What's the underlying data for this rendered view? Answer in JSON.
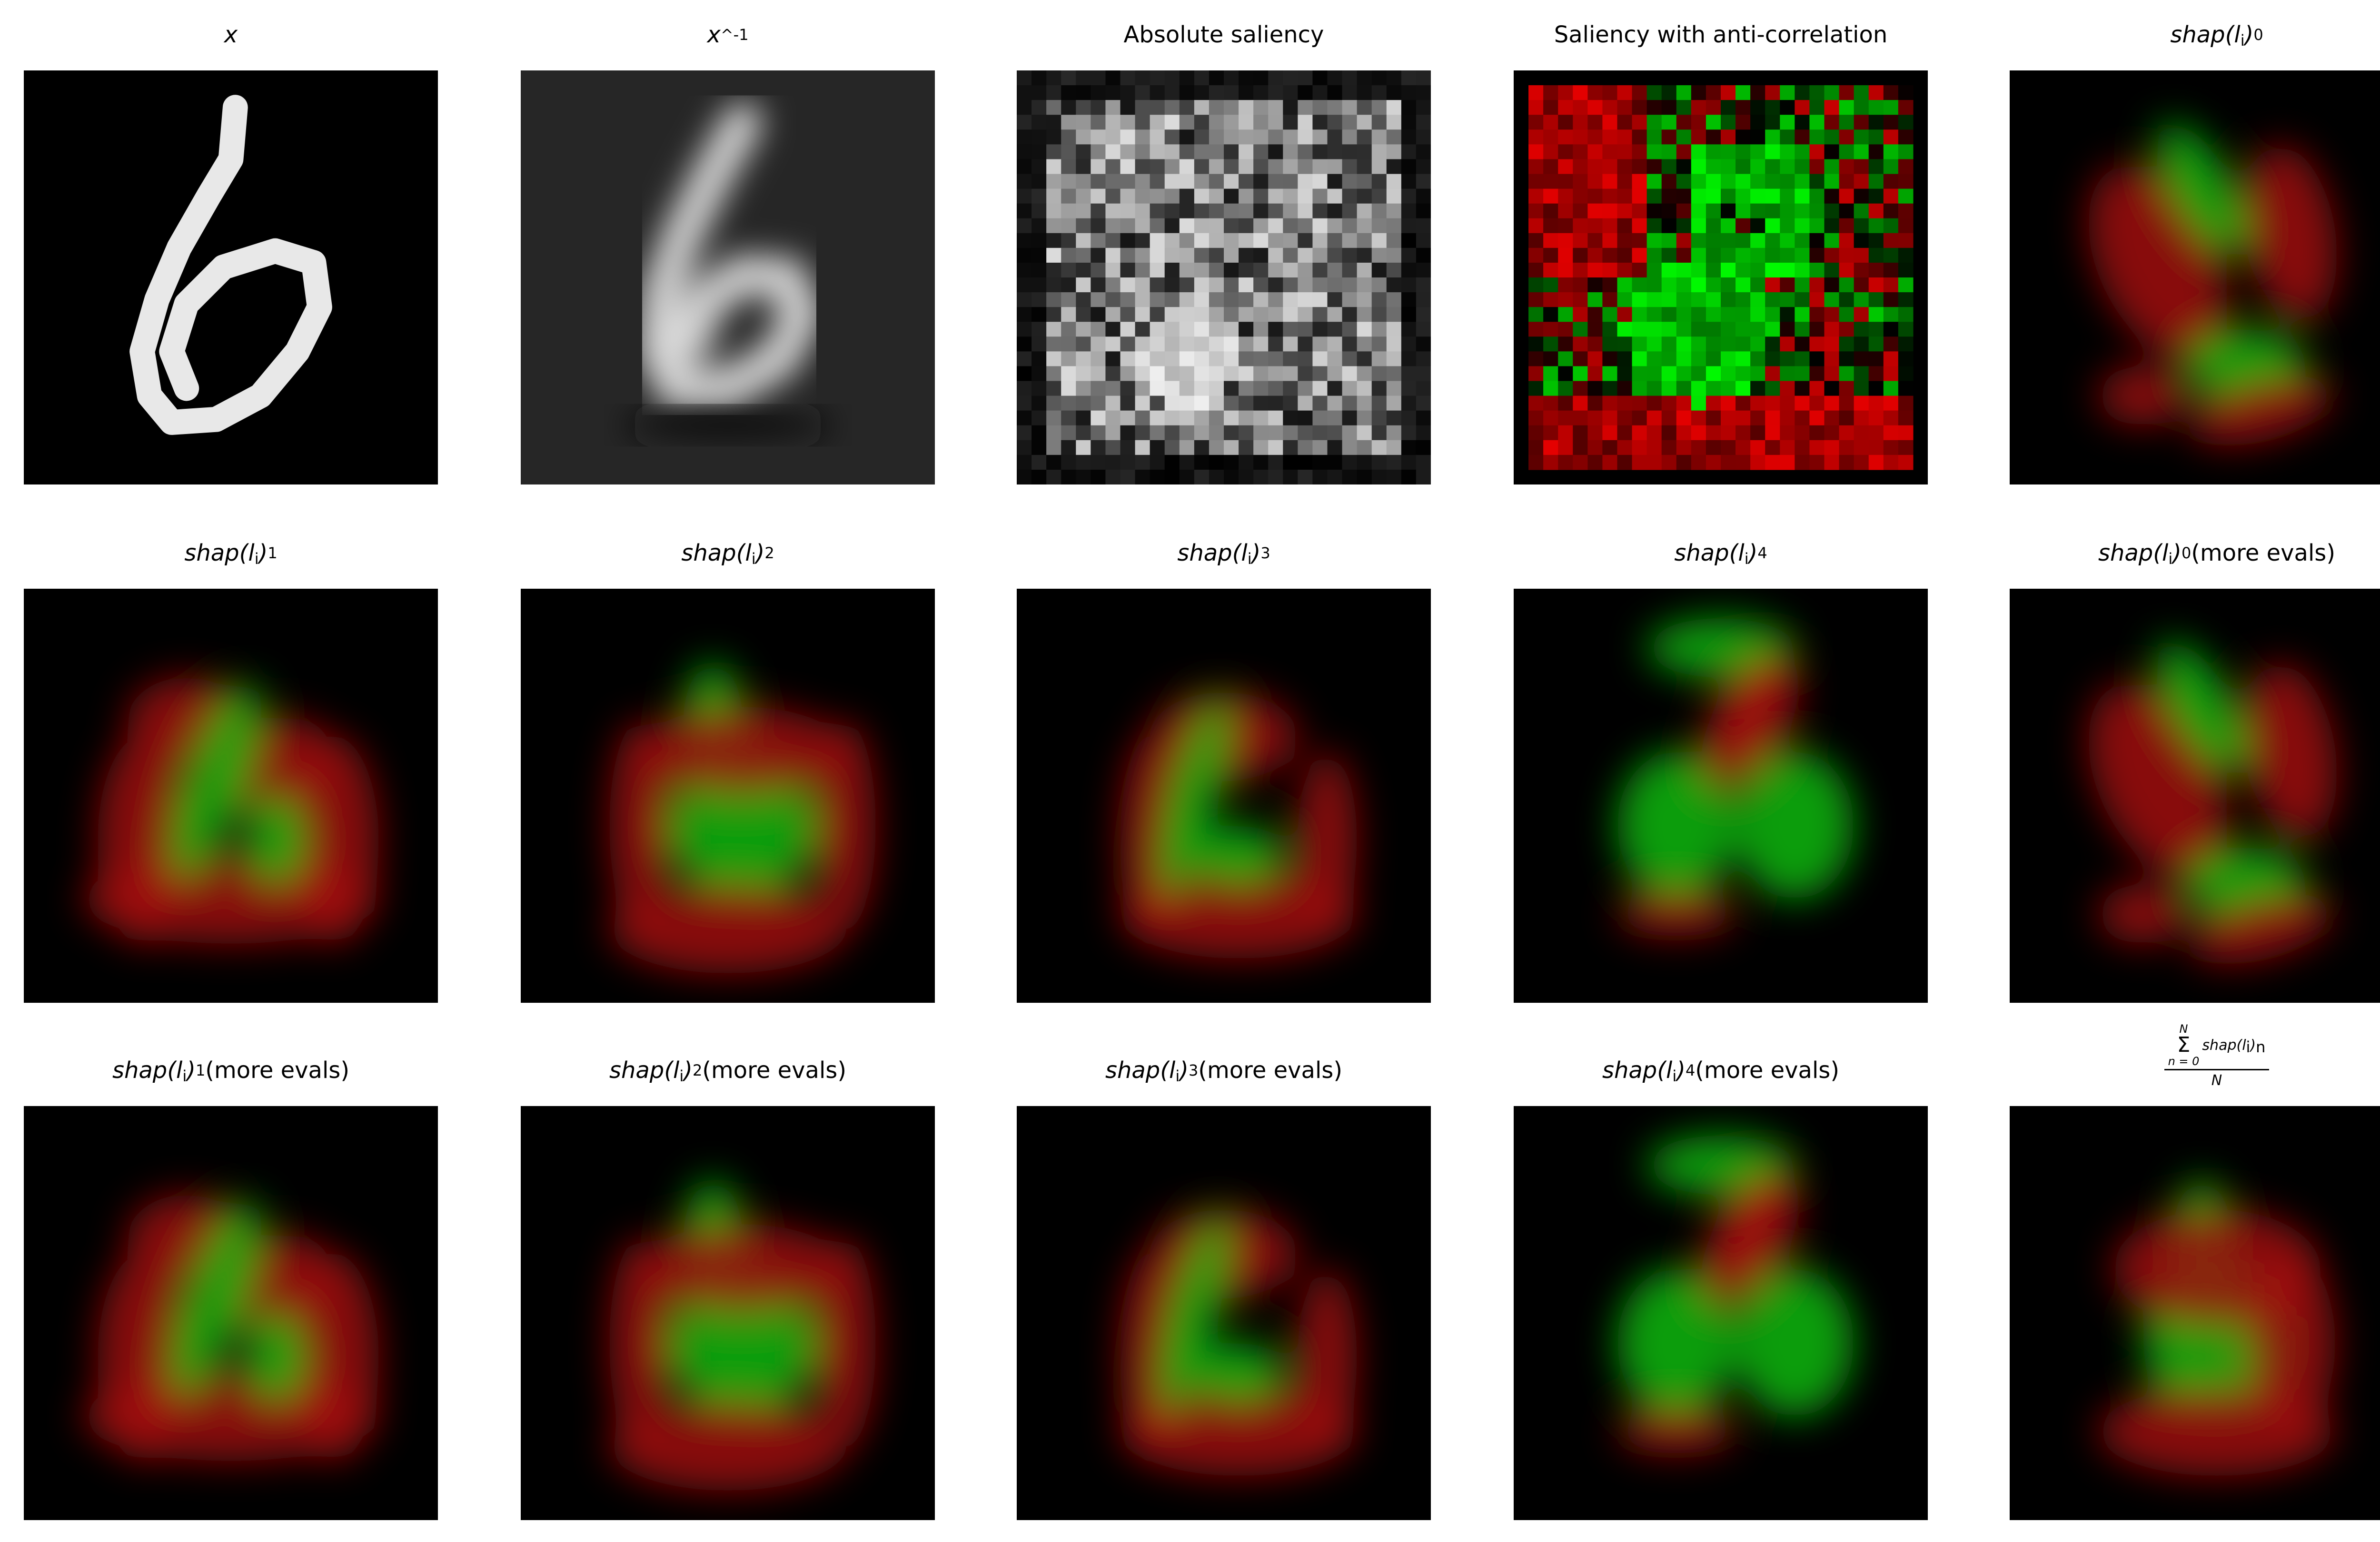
{
  "panels": [
    {
      "id": "p0",
      "kind": "digit",
      "title_main": "x",
      "title_sub": "",
      "title_sup": "",
      "title_suffix": ""
    },
    {
      "id": "p1",
      "kind": "recon",
      "title_main": "x",
      "title_sub": "",
      "title_sup": "^-1",
      "title_suffix": ""
    },
    {
      "id": "p2",
      "kind": "absnoise",
      "title_text": "Absolute saliency"
    },
    {
      "id": "p3",
      "kind": "anticorr",
      "title_text": "Saliency with anti-correlation"
    },
    {
      "id": "p4",
      "kind": "shap",
      "title_main": "shap(l",
      "title_i": "i",
      "title_close": ")",
      "title_sub": "0",
      "title_suffix": ""
    },
    {
      "id": "p5",
      "kind": "shap",
      "title_main": "shap(l",
      "title_i": "i",
      "title_close": ")",
      "title_sub": "1",
      "title_suffix": ""
    },
    {
      "id": "p6",
      "kind": "shap",
      "title_main": "shap(l",
      "title_i": "i",
      "title_close": ")",
      "title_sub": "2",
      "title_suffix": ""
    },
    {
      "id": "p7",
      "kind": "shap",
      "title_main": "shap(l",
      "title_i": "i",
      "title_close": ")",
      "title_sub": "3",
      "title_suffix": ""
    },
    {
      "id": "p8",
      "kind": "shap",
      "title_main": "shap(l",
      "title_i": "i",
      "title_close": ")",
      "title_sub": "4",
      "title_suffix": ""
    },
    {
      "id": "p9",
      "kind": "shap",
      "title_main": "shap(l",
      "title_i": "i",
      "title_close": ")",
      "title_sub": "0",
      "title_suffix": " (more evals)"
    },
    {
      "id": "p10",
      "kind": "shap",
      "title_main": "shap(l",
      "title_i": "i",
      "title_close": ")",
      "title_sub": "1",
      "title_suffix": " (more evals)"
    },
    {
      "id": "p11",
      "kind": "shap",
      "title_main": "shap(l",
      "title_i": "i",
      "title_close": ")",
      "title_sub": "2",
      "title_suffix": " (more evals)"
    },
    {
      "id": "p12",
      "kind": "shap",
      "title_main": "shap(l",
      "title_i": "i",
      "title_close": ")",
      "title_sub": "3",
      "title_suffix": " (more evals)"
    },
    {
      "id": "p13",
      "kind": "shap",
      "title_main": "shap(l",
      "title_i": "i",
      "title_close": ")",
      "title_sub": "4",
      "title_suffix": " (more evals)"
    },
    {
      "id": "p14",
      "kind": "mean",
      "frac_top": "N",
      "frac_bottom": "n = 0",
      "frac_term": "shap(l",
      "frac_i": "i",
      "frac_close": ")",
      "frac_sub": "n",
      "frac_den": "N"
    }
  ],
  "colors": {
    "positive": "#00ff00",
    "negative": "#ff0000",
    "background": "#000000",
    "figure": "#ffffff"
  }
}
